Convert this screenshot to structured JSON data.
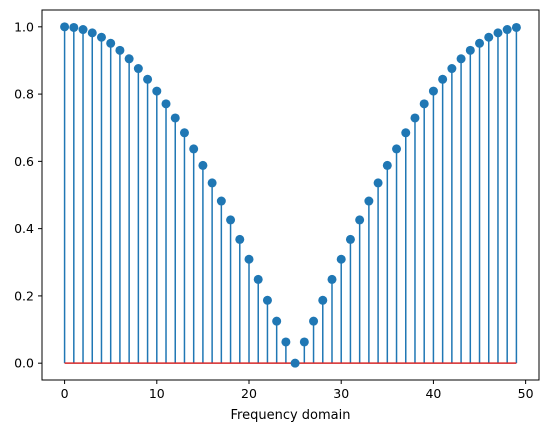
{
  "chart_data": {
    "type": "stem",
    "xlabel": "Frequency domain",
    "ylabel": "",
    "xlim": [
      -2.45,
      51.45
    ],
    "ylim": [
      -0.05,
      1.05
    ],
    "x_ticks": [
      0,
      10,
      20,
      30,
      40,
      50
    ],
    "y_ticks": [
      0.0,
      0.2,
      0.4,
      0.6,
      0.8,
      1.0
    ],
    "x_tick_labels": [
      "0",
      "10",
      "20",
      "30",
      "40",
      "50"
    ],
    "y_tick_labels": [
      "0.0",
      "0.2",
      "0.4",
      "0.6",
      "0.8",
      "1.0"
    ],
    "grid": false,
    "baseline": 0,
    "x": [
      0,
      1,
      2,
      3,
      4,
      5,
      6,
      7,
      8,
      9,
      10,
      11,
      12,
      13,
      14,
      15,
      16,
      17,
      18,
      19,
      20,
      21,
      22,
      23,
      24,
      25,
      26,
      27,
      28,
      29,
      30,
      31,
      32,
      33,
      34,
      35,
      36,
      37,
      38,
      39,
      40,
      41,
      42,
      43,
      44,
      45,
      46,
      47,
      48,
      49
    ],
    "values": [
      1.0,
      0.998,
      0.992,
      0.982,
      0.969,
      0.951,
      0.93,
      0.905,
      0.876,
      0.844,
      0.809,
      0.771,
      0.729,
      0.685,
      0.637,
      0.588,
      0.536,
      0.482,
      0.426,
      0.368,
      0.309,
      0.249,
      0.187,
      0.125,
      0.063,
      0.0,
      0.063,
      0.125,
      0.187,
      0.249,
      0.309,
      0.368,
      0.426,
      0.482,
      0.536,
      0.588,
      0.637,
      0.685,
      0.729,
      0.771,
      0.809,
      0.844,
      0.876,
      0.905,
      0.93,
      0.951,
      0.969,
      0.982,
      0.992,
      0.998
    ],
    "colors": {
      "stem": "#1f77b4",
      "marker": "#1f77b4",
      "baseline": "#d62728"
    }
  }
}
